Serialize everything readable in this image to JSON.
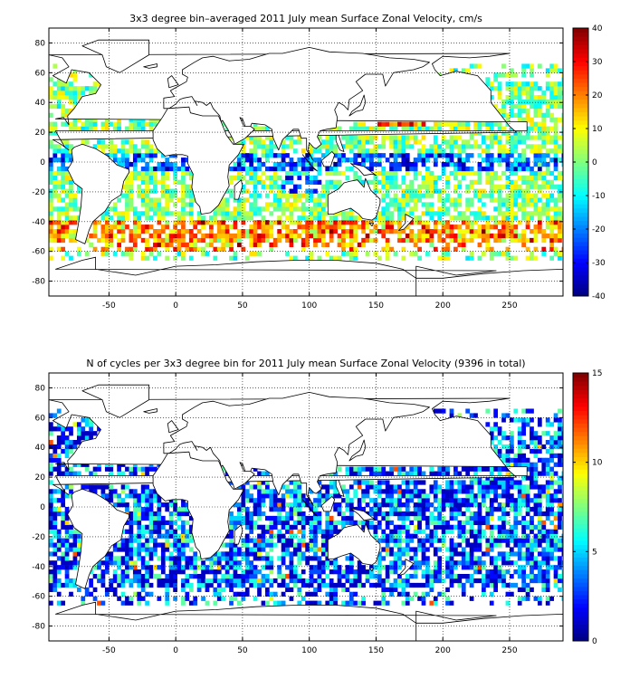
{
  "chart_data": [
    {
      "type": "heatmap",
      "title": "3x3 degree bin–averaged 2011 July mean Surface Zonal Velocity, cm/s",
      "xlabel": "",
      "ylabel": "",
      "xlim": [
        -95,
        290
      ],
      "ylim": [
        -90,
        90
      ],
      "xticks": [
        -50,
        0,
        50,
        100,
        150,
        200,
        250
      ],
      "yticks": [
        -80,
        -60,
        -40,
        -20,
        0,
        20,
        40,
        60,
        80
      ],
      "grid": true,
      "colorbar": {
        "min": -40,
        "max": 40,
        "ticks": [
          -40,
          -30,
          -20,
          -10,
          0,
          10,
          20,
          30,
          40
        ],
        "colormap": "jet"
      },
      "bin_size_deg": 3,
      "colors": {
        "jet_low": "#00008f",
        "jet_mid": "#7fff7f",
        "jet_high": "#800000",
        "land": "#ffffff",
        "grid": "#000000"
      }
    },
    {
      "type": "heatmap",
      "title": "N of cycles per 3x3 degree bin for 2011 July mean Surface Zonal Velocity (9396 in total)",
      "xlabel": "",
      "ylabel": "",
      "xlim": [
        -95,
        290
      ],
      "ylim": [
        -90,
        90
      ],
      "xticks": [
        -50,
        0,
        50,
        100,
        150,
        200,
        250
      ],
      "yticks": [
        -80,
        -60,
        -40,
        -20,
        0,
        20,
        40,
        60,
        80
      ],
      "grid": true,
      "colorbar": {
        "min": 0,
        "max": 15,
        "ticks": [
          0,
          5,
          10,
          15
        ],
        "colormap": "jet"
      },
      "bin_size_deg": 3,
      "colors": {
        "jet_low": "#00008f",
        "jet_mid": "#7fff7f",
        "jet_high": "#800000",
        "land": "#ffffff",
        "grid": "#000000"
      }
    }
  ]
}
